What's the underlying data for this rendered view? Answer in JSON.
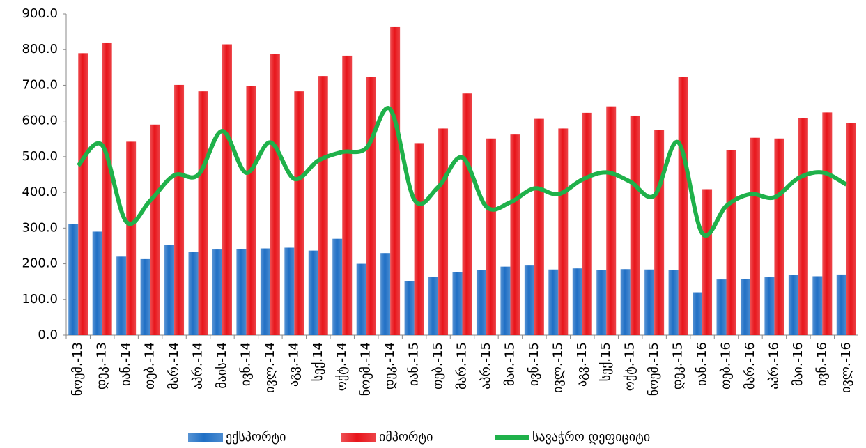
{
  "chart_data": {
    "type": "bar-line",
    "categories": [
      "ნოემ.-13",
      "დეკ.-13",
      "იან.-14",
      "თებ.-14",
      "მარ.-14",
      "აპრ.-14",
      "მაის-14",
      "ივნ.-14",
      "ივლ.-14",
      "აგვ.-14",
      "სექ.14",
      "ოქტ.-14",
      "ნოემ.-14",
      "დეკ.-14",
      "იან.-15",
      "თებ.-15",
      "მარ.-15",
      "აპრ.-15",
      "მაი.-15",
      "ივნ.-15",
      "ივლ.-15",
      "აგვ.-15",
      "სექ.15",
      "ოქტ.-15",
      "ნოემ.-15",
      "დეკ.-15",
      "იან.-16",
      "თებ.-16",
      "მარ.-16",
      "აპრ.-16",
      "მაი.-16",
      "ივნ.-16",
      "ივლ.-16"
    ],
    "series": [
      {
        "name": "ექსპორტი",
        "type": "bar",
        "color": "#1f6fc5",
        "values": [
          311,
          290,
          220,
          213,
          253,
          234,
          240,
          242,
          243,
          245,
          237,
          270,
          200,
          230,
          152,
          164,
          176,
          183,
          192,
          195,
          184,
          187,
          183,
          185,
          184,
          182,
          120,
          156,
          158,
          162,
          169,
          165,
          170
        ]
      },
      {
        "name": "იმპორტი",
        "type": "bar",
        "color": "#e8141a",
        "values": [
          790,
          820,
          542,
          590,
          701,
          683,
          815,
          697,
          787,
          683,
          726,
          783,
          724,
          863,
          538,
          579,
          677,
          551,
          562,
          606,
          579,
          623,
          641,
          615,
          575,
          724,
          409,
          518,
          553,
          551,
          609,
          624,
          594
        ]
      },
      {
        "name": "სავაჭრო დეფიციტი",
        "type": "line",
        "color": "#1fb14a",
        "values": [
          475,
          532,
          318,
          377,
          448,
          449,
          572,
          455,
          540,
          438,
          489,
          513,
          524,
          633,
          380,
          415,
          498,
          360,
          372,
          411,
          395,
          436,
          456,
          430,
          391,
          540,
          285,
          362,
          395,
          386,
          440,
          456,
          422
        ]
      }
    ],
    "ylim": [
      0,
      900
    ],
    "yticks": [
      {
        "value": 0,
        "label": "0.0"
      },
      {
        "value": 100,
        "label": "100.0"
      },
      {
        "value": 200,
        "label": "200.0"
      },
      {
        "value": 300,
        "label": "300.0"
      },
      {
        "value": 400,
        "label": "400.0"
      },
      {
        "value": 500,
        "label": "500.0"
      },
      {
        "value": 600,
        "label": "600.0"
      },
      {
        "value": 700,
        "label": "700.0"
      },
      {
        "value": 800,
        "label": "800.0"
      },
      {
        "value": 900,
        "label": "900.0"
      }
    ],
    "legend": "bottom"
  }
}
